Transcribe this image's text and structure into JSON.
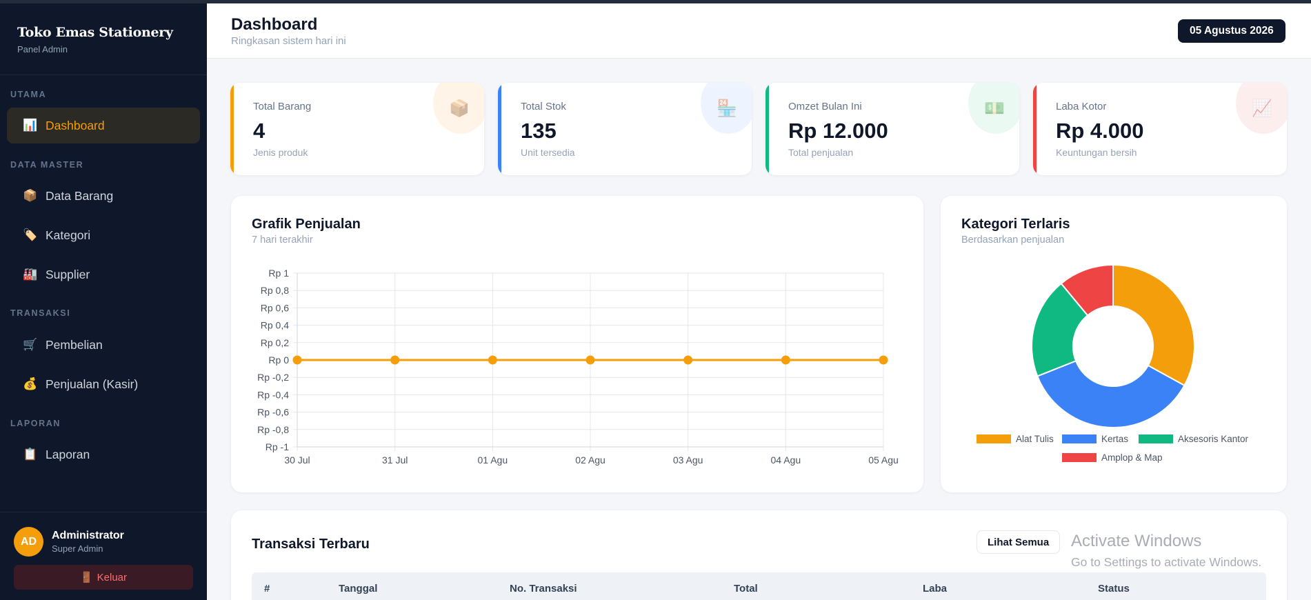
{
  "brand": {
    "name": "Toko Emas Stationery",
    "subtitle": "Panel Admin"
  },
  "sidebar": {
    "sections": [
      {
        "label": "UTAMA",
        "items": [
          {
            "label": "Dashboard",
            "icon": "bar-chart-icon",
            "glyph": "📊",
            "active": true
          }
        ]
      },
      {
        "label": "DATA MASTER",
        "items": [
          {
            "label": "Data Barang",
            "icon": "box-icon",
            "glyph": "📦"
          },
          {
            "label": "Kategori",
            "icon": "tag-icon",
            "glyph": "🏷️"
          },
          {
            "label": "Supplier",
            "icon": "factory-icon",
            "glyph": "🏭"
          }
        ]
      },
      {
        "label": "TRANSAKSI",
        "items": [
          {
            "label": "Pembelian",
            "icon": "cart-icon",
            "glyph": "🛒"
          },
          {
            "label": "Penjualan (Kasir)",
            "icon": "money-bag-icon",
            "glyph": "💰"
          }
        ]
      },
      {
        "label": "LAPORAN",
        "items": [
          {
            "label": "Laporan",
            "icon": "clipboard-icon",
            "glyph": "📋"
          }
        ]
      }
    ],
    "user": {
      "initials": "AD",
      "name": "Administrator",
      "role": "Super Admin"
    },
    "logout": {
      "label": "Keluar",
      "icon": "door-icon",
      "glyph": "🚪"
    }
  },
  "header": {
    "title": "Dashboard",
    "subtitle": "Ringkasan sistem hari ini",
    "date": "05 Agustus 2026"
  },
  "stats": [
    {
      "label": "Total Barang",
      "value": "4",
      "note": "Jenis produk",
      "color": "#f59e0b",
      "tint": "#fff4e6",
      "icon": "box-icon",
      "glyph": "📦"
    },
    {
      "label": "Total Stok",
      "value": "135",
      "note": "Unit tersedia",
      "color": "#3b82f6",
      "tint": "#eef4ff",
      "icon": "store-icon",
      "glyph": "🏪"
    },
    {
      "label": "Omzet Bulan Ini",
      "value": "Rp 12.000",
      "note": "Total penjualan",
      "color": "#10b981",
      "tint": "#e9f9f1",
      "icon": "cash-icon",
      "glyph": "💵"
    },
    {
      "label": "Laba Kotor",
      "value": "Rp 4.000",
      "note": "Keuntungan bersih",
      "color": "#ef4444",
      "tint": "#fdeeee",
      "icon": "trend-up-icon",
      "glyph": "📈"
    }
  ],
  "sales_panel": {
    "title": "Grafik Penjualan",
    "subtitle": "7 hari terakhir"
  },
  "category_panel": {
    "title": "Kategori Terlaris",
    "subtitle": "Berdasarkan penjualan"
  },
  "chart_data": [
    {
      "type": "line",
      "title": "Grafik Penjualan",
      "x": [
        "30 Jul",
        "31 Jul",
        "01 Agu",
        "02 Agu",
        "03 Agu",
        "04 Agu",
        "05 Agu"
      ],
      "series": [
        {
          "values": [
            0,
            0,
            0,
            0,
            0,
            0,
            0
          ],
          "color": "#f59e0b"
        }
      ],
      "ylim": [
        -1,
        1
      ],
      "yticks": [
        "Rp 1",
        "Rp 0,8",
        "Rp 0,6",
        "Rp 0,4",
        "Rp 0,2",
        "Rp 0",
        "Rp -0,2",
        "Rp -0,4",
        "Rp -0,6",
        "Rp -0,8",
        "Rp -1"
      ],
      "grid": true
    },
    {
      "type": "pie",
      "title": "Kategori Terlaris",
      "donut": true,
      "categories": [
        "Alat Tulis",
        "Kertas",
        "Aksesoris Kantor",
        "Amplop & Map"
      ],
      "values": [
        33,
        36,
        20,
        11
      ],
      "colors": [
        "#f59e0b",
        "#3b82f6",
        "#10b981",
        "#ef4444"
      ],
      "legend": "bottom"
    }
  ],
  "transactions": {
    "title": "Transaksi Terbaru",
    "see_all": "Lihat Semua",
    "columns": [
      "#",
      "Tanggal",
      "No. Transaksi",
      "Total",
      "Laba",
      "Status"
    ]
  },
  "watermark": {
    "line1": "Activate Windows",
    "line2": "Go to Settings to activate Windows."
  }
}
